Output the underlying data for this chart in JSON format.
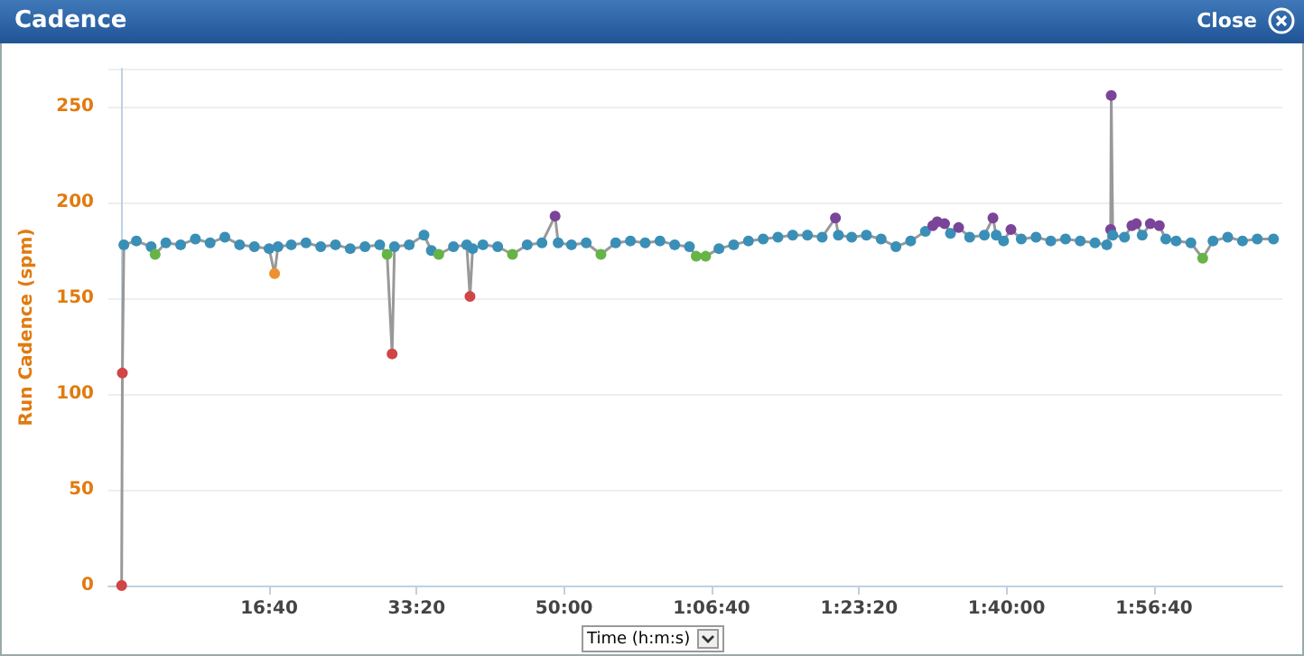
{
  "chart_data": {
    "type": "line",
    "title": "Cadence",
    "xlabel": "Time (h:m:s)",
    "ylabel": "Run Cadence (spm)",
    "annotations": [
      "Close"
    ],
    "xlim": [
      -90,
      7870
    ],
    "ylim": [
      0,
      270
    ],
    "xticks": [
      {
        "value": 1000,
        "label": "16:40"
      },
      {
        "value": 2000,
        "label": "33:20"
      },
      {
        "value": 3000,
        "label": "50:00"
      },
      {
        "value": 4000,
        "label": "1:06:40"
      },
      {
        "value": 5000,
        "label": "1:23:20"
      },
      {
        "value": 6000,
        "label": "1:40:00"
      },
      {
        "value": 7000,
        "label": "1:56:40"
      }
    ],
    "yticks": [
      0,
      50,
      100,
      150,
      200,
      250
    ],
    "grid": "y",
    "marker": "circle",
    "line_style": "solid",
    "series": [
      {
        "color": "#999999",
        "x": [
          0,
          5,
          15,
          100,
          200,
          227,
          300,
          400,
          500,
          600,
          700,
          800,
          900,
          1000,
          1037,
          1060,
          1150,
          1250,
          1350,
          1450,
          1550,
          1650,
          1750,
          1800,
          1834,
          1850,
          1950,
          2050,
          2100,
          2150,
          2250,
          2340,
          2362,
          2380,
          2450,
          2550,
          2650,
          2750,
          2850,
          2939,
          2960,
          3050,
          3150,
          3250,
          3350,
          3450,
          3550,
          3650,
          3750,
          3850,
          3896,
          3960,
          4050,
          4150,
          4250,
          4350,
          4450,
          4550,
          4650,
          4750,
          4840,
          4860,
          4950,
          5050,
          5150,
          5250,
          5350,
          5450,
          5500,
          5530,
          5580,
          5620,
          5675,
          5750,
          5850,
          5908,
          5930,
          5980,
          6030,
          6100,
          6200,
          6300,
          6400,
          6500,
          6600,
          6680,
          6706,
          6710,
          6720,
          6800,
          6850,
          6880,
          6920,
          6975,
          7036,
          7080,
          7150,
          7250,
          7330,
          7400,
          7500,
          7600,
          7700,
          7810
        ],
        "values": [
          0,
          111,
          178,
          180,
          177,
          173,
          179,
          178,
          181,
          179,
          182,
          178,
          177,
          176,
          163,
          177,
          178,
          179,
          177,
          178,
          176,
          177,
          178,
          173,
          121,
          177,
          178,
          183,
          175,
          173,
          177,
          178,
          151,
          176,
          178,
          177,
          173,
          178,
          179,
          193,
          179,
          178,
          179,
          173,
          179,
          180,
          179,
          180,
          178,
          177,
          172,
          172,
          176,
          178,
          180,
          181,
          182,
          183,
          183,
          182,
          192,
          183,
          182,
          183,
          181,
          177,
          180,
          185,
          188,
          190,
          189,
          184,
          187,
          182,
          183,
          192,
          183,
          180,
          186,
          181,
          182,
          180,
          181,
          180,
          179,
          178,
          186,
          256,
          183,
          182,
          188,
          189,
          183,
          189,
          188,
          181,
          180,
          179,
          171,
          180,
          182,
          180,
          181,
          181
        ],
        "colors": [
          "#d04545",
          "#d04545",
          "#3a8fb7",
          "#3a8fb7",
          "#3a8fb7",
          "#66b447",
          "#3a8fb7",
          "#3a8fb7",
          "#3a8fb7",
          "#3a8fb7",
          "#3a8fb7",
          "#3a8fb7",
          "#3a8fb7",
          "#3a8fb7",
          "#ef9030",
          "#3a8fb7",
          "#3a8fb7",
          "#3a8fb7",
          "#3a8fb7",
          "#3a8fb7",
          "#3a8fb7",
          "#3a8fb7",
          "#3a8fb7",
          "#66b447",
          "#d04545",
          "#3a8fb7",
          "#3a8fb7",
          "#3a8fb7",
          "#3a8fb7",
          "#66b447",
          "#3a8fb7",
          "#3a8fb7",
          "#d04545",
          "#3a8fb7",
          "#3a8fb7",
          "#3a8fb7",
          "#66b447",
          "#3a8fb7",
          "#3a8fb7",
          "#7a4599",
          "#3a8fb7",
          "#3a8fb7",
          "#3a8fb7",
          "#66b447",
          "#3a8fb7",
          "#3a8fb7",
          "#3a8fb7",
          "#3a8fb7",
          "#3a8fb7",
          "#3a8fb7",
          "#66b447",
          "#66b447",
          "#3a8fb7",
          "#3a8fb7",
          "#3a8fb7",
          "#3a8fb7",
          "#3a8fb7",
          "#3a8fb7",
          "#3a8fb7",
          "#3a8fb7",
          "#7a4599",
          "#3a8fb7",
          "#3a8fb7",
          "#3a8fb7",
          "#3a8fb7",
          "#3a8fb7",
          "#3a8fb7",
          "#3a8fb7",
          "#7a4599",
          "#7a4599",
          "#7a4599",
          "#3a8fb7",
          "#7a4599",
          "#3a8fb7",
          "#3a8fb7",
          "#7a4599",
          "#3a8fb7",
          "#3a8fb7",
          "#7a4599",
          "#3a8fb7",
          "#3a8fb7",
          "#3a8fb7",
          "#3a8fb7",
          "#3a8fb7",
          "#3a8fb7",
          "#3a8fb7",
          "#7a4599",
          "#7a4599",
          "#3a8fb7",
          "#3a8fb7",
          "#7a4599",
          "#7a4599",
          "#3a8fb7",
          "#7a4599",
          "#7a4599",
          "#3a8fb7",
          "#3a8fb7",
          "#3a8fb7",
          "#66b447",
          "#3a8fb7",
          "#3a8fb7",
          "#3a8fb7",
          "#3a8fb7",
          "#3a8fb7"
        ]
      }
    ]
  }
}
